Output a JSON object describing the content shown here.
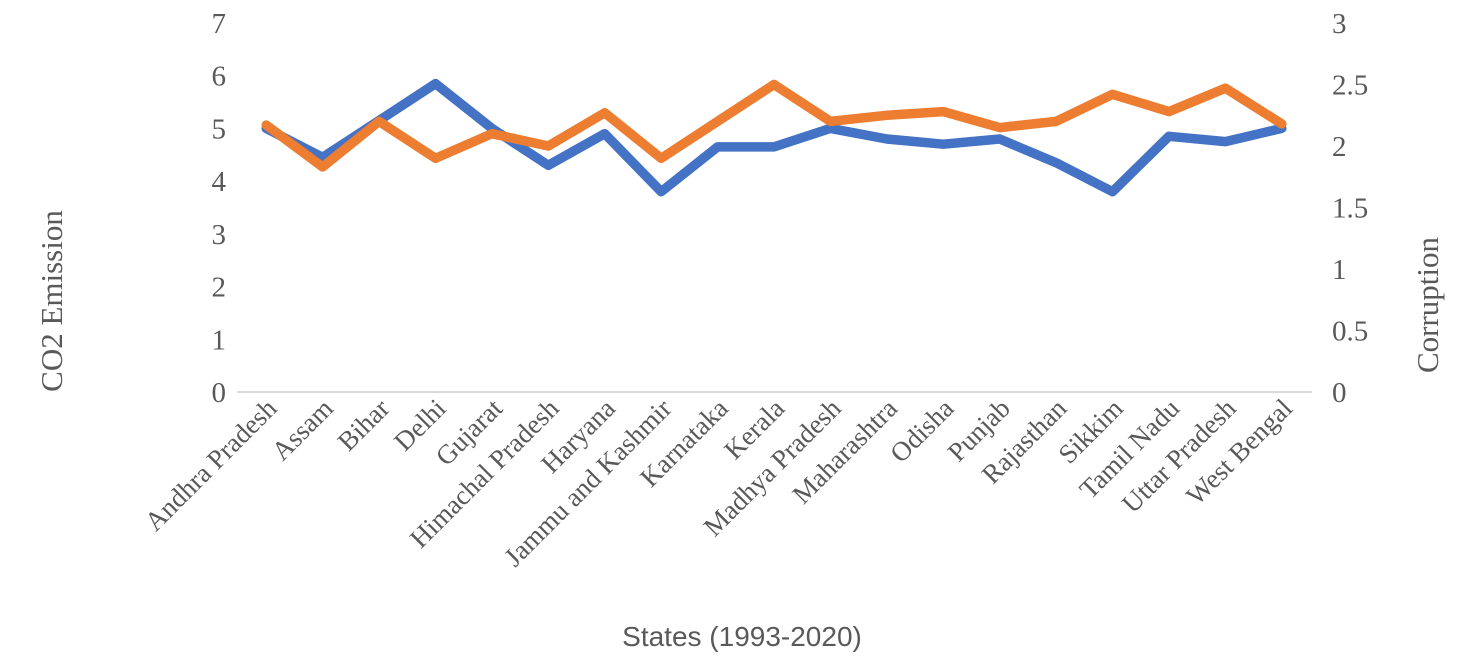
{
  "chart_data": {
    "type": "line",
    "title": "",
    "categories": [
      "Andhra Pradesh",
      "Assam",
      "Bihar",
      "Delhi",
      "Gujarat",
      "Himachal Pradesh",
      "Haryana",
      "Jammu and Kashmir",
      "Karnataka",
      "Kerala",
      "Madhya Pradesh",
      "Maharashtra",
      "Odisha",
      "Punjab",
      "Rajasthan",
      "Sikkim",
      "Tamil Nadu",
      "Uttar Pradesh",
      "West Bengal"
    ],
    "series": [
      {
        "name": "CO2 Emission",
        "axis": "left",
        "color": "#4472C4",
        "values": [
          5.0,
          4.45,
          5.15,
          5.85,
          5.0,
          4.3,
          4.9,
          3.8,
          4.65,
          4.65,
          5.0,
          4.8,
          4.7,
          4.8,
          4.35,
          3.8,
          4.85,
          4.75,
          5.0
        ]
      },
      {
        "name": "Corruption",
        "axis": "right",
        "color": "#ED7D31",
        "values": [
          2.17,
          1.83,
          2.2,
          1.9,
          2.1,
          2.0,
          2.27,
          1.9,
          2.2,
          2.5,
          2.2,
          2.25,
          2.28,
          2.15,
          2.2,
          2.42,
          2.28,
          2.47,
          2.18
        ]
      }
    ],
    "left_axis": {
      "title": "CO2 Emission",
      "range": [
        0,
        7
      ],
      "ticks": [
        0,
        1,
        2,
        3,
        4,
        5,
        6,
        7
      ]
    },
    "right_axis": {
      "title": "Corruption",
      "range": [
        0,
        3
      ],
      "ticks": [
        0,
        0.5,
        1,
        1.5,
        2,
        2.5,
        3
      ]
    },
    "xlabel": "States (1993-2020)",
    "grid": false,
    "legend_position": "none",
    "axis_text_color": "#595959",
    "baseline_color": "#D9D9D9"
  }
}
